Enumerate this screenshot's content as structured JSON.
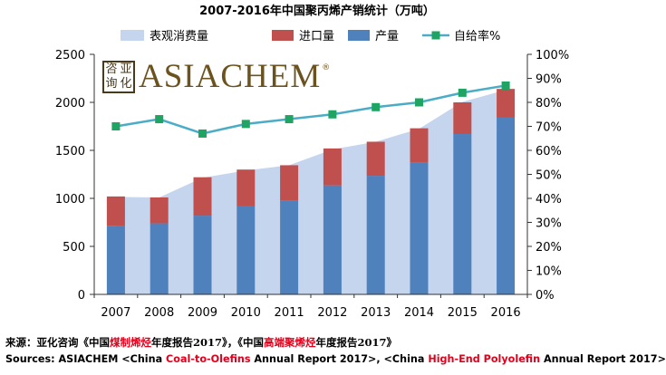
{
  "chart_data": {
    "type": "bar",
    "title": "2007-2016年中国聚丙烯产销统计（万吨）",
    "categories": [
      "2007",
      "2008",
      "2009",
      "2010",
      "2011",
      "2012",
      "2013",
      "2014",
      "2015",
      "2016"
    ],
    "series": [
      {
        "name": "表观消费量",
        "kind": "area",
        "axis": "left",
        "color": "#c5d5ee",
        "values": [
          1015,
          1010,
          1215,
          1290,
          1345,
          1510,
          1590,
          1725,
          2005,
          2130
        ]
      },
      {
        "name": "进口量",
        "kind": "bar-stacked",
        "axis": "left",
        "color": "#c0504d",
        "values": [
          310,
          270,
          400,
          380,
          365,
          385,
          355,
          360,
          330,
          300
        ]
      },
      {
        "name": "产量",
        "kind": "bar-stacked",
        "axis": "left",
        "color": "#4f81bd",
        "values": [
          710,
          740,
          820,
          920,
          980,
          1135,
          1235,
          1370,
          1670,
          1840
        ]
      },
      {
        "name": "自给率%",
        "kind": "line",
        "axis": "right",
        "color": "#4bacc6",
        "values": [
          70,
          73,
          67,
          71,
          73,
          75,
          78,
          80,
          84,
          87
        ]
      }
    ],
    "y_left": {
      "min": 0,
      "max": 2500,
      "ticks": [
        0,
        500,
        1000,
        1500,
        2000,
        2500
      ]
    },
    "y_right": {
      "min": 0,
      "max": 100,
      "ticks": [
        "0%",
        "10%",
        "20%",
        "30%",
        "40%",
        "50%",
        "60%",
        "70%",
        "80%",
        "90%",
        "100%"
      ]
    },
    "legend_position": "top",
    "grid": false
  },
  "logo": {
    "seal_chars": [
      "咨",
      "亚",
      "询",
      "化"
    ],
    "wordmark": "ASIACHEM",
    "mark": "®"
  },
  "sources": {
    "cn": [
      {
        "t": "来源：亚化咨询《中国",
        "c": ""
      },
      {
        "t": "煤制烯烃",
        "c": "red"
      },
      {
        "t": "年度报告2017》，《中国",
        "c": ""
      },
      {
        "t": "高端聚烯烃",
        "c": "red"
      },
      {
        "t": "年度报告2017》",
        "c": ""
      }
    ],
    "en": [
      {
        "t": "Sources: ASIACHEM <China ",
        "c": ""
      },
      {
        "t": "Coal-to-Olefins",
        "c": "red"
      },
      {
        "t": " Annual Report 2017>, <China ",
        "c": ""
      },
      {
        "t": "High-End Polyolefin",
        "c": "red"
      },
      {
        "t": " Annual Report 2017>",
        "c": ""
      }
    ]
  }
}
